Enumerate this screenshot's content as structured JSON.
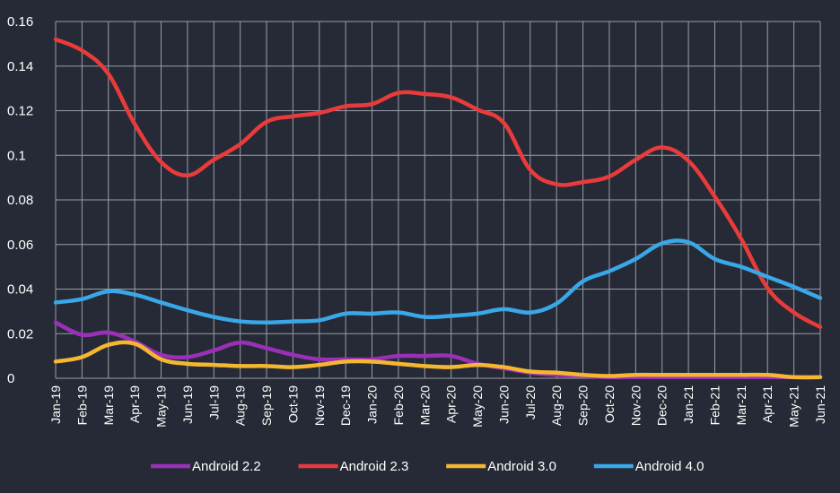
{
  "chart_data": {
    "type": "line",
    "title": "",
    "xlabel": "",
    "ylabel": "",
    "ylim": [
      0,
      0.16
    ],
    "yticks": [
      {
        "value": 0,
        "label": "0"
      },
      {
        "value": 0.02,
        "label": "0.02"
      },
      {
        "value": 0.04,
        "label": "0.04"
      },
      {
        "value": 0.06,
        "label": "0.06"
      },
      {
        "value": 0.08,
        "label": "0.08"
      },
      {
        "value": 0.1,
        "label": "0.1"
      },
      {
        "value": 0.12,
        "label": "0.12"
      },
      {
        "value": 0.14,
        "label": "0.14"
      },
      {
        "value": 0.16,
        "label": "0.16"
      }
    ],
    "categories": [
      "Jan-19",
      "Feb-19",
      "Mar-19",
      "Apr-19",
      "May-19",
      "Jun-19",
      "Jul-19",
      "Aug-19",
      "Sep-19",
      "Oct-19",
      "Nov-19",
      "Dec-19",
      "Jan-20",
      "Feb-20",
      "Mar-20",
      "Apr-20",
      "May-20",
      "Jun-20",
      "Jul-20",
      "Aug-20",
      "Sep-20",
      "Oct-20",
      "Nov-20",
      "Dec-20",
      "Jan-21",
      "Feb-21",
      "Mar-21",
      "Apr-21",
      "May-21",
      "Jun-21"
    ],
    "grid": true,
    "legend_position": "bottom",
    "series": [
      {
        "name": "Android 2.2",
        "color": "#9b30b8",
        "values": [
          0.025,
          0.0195,
          0.0205,
          0.0165,
          0.0105,
          0.0095,
          0.0125,
          0.016,
          0.0135,
          0.0105,
          0.0085,
          0.0085,
          0.0085,
          0.01,
          0.01,
          0.01,
          0.0065,
          0.0045,
          0.0025,
          0.0015,
          0.001,
          0.0005,
          0.0005,
          0.0005,
          0.0005,
          0.0005,
          0.0005,
          0.0005,
          0.0005,
          0.0005
        ]
      },
      {
        "name": "Android 2.3",
        "color": "#e93b3b",
        "values": [
          0.152,
          0.147,
          0.1365,
          0.114,
          0.097,
          0.091,
          0.098,
          0.105,
          0.115,
          0.1175,
          0.119,
          0.122,
          0.123,
          0.128,
          0.1275,
          0.126,
          0.1205,
          0.1145,
          0.0935,
          0.087,
          0.088,
          0.0905,
          0.098,
          0.1035,
          0.0975,
          0.0815,
          0.0625,
          0.0405,
          0.0295,
          0.023
        ]
      },
      {
        "name": "Android 3.0",
        "color": "#f5b731",
        "values": [
          0.0075,
          0.0095,
          0.015,
          0.0155,
          0.0085,
          0.0065,
          0.006,
          0.0055,
          0.0055,
          0.005,
          0.006,
          0.0075,
          0.0075,
          0.0065,
          0.0055,
          0.005,
          0.006,
          0.005,
          0.003,
          0.0025,
          0.0015,
          0.001,
          0.0015,
          0.0015,
          0.0015,
          0.0015,
          0.0015,
          0.0015,
          0.0005,
          0.0005
        ]
      },
      {
        "name": "Android 4.0",
        "color": "#39a7e8",
        "values": [
          0.034,
          0.0355,
          0.039,
          0.0375,
          0.034,
          0.0305,
          0.0275,
          0.0255,
          0.025,
          0.0255,
          0.026,
          0.029,
          0.029,
          0.0295,
          0.0275,
          0.028,
          0.029,
          0.031,
          0.0295,
          0.0335,
          0.0435,
          0.048,
          0.0535,
          0.0605,
          0.061,
          0.0535,
          0.05,
          0.0455,
          0.041,
          0.036
        ]
      }
    ]
  }
}
